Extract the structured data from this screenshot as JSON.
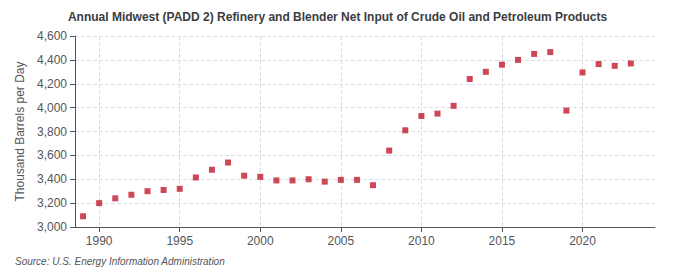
{
  "chart_data": {
    "type": "scatter",
    "title": "Annual Midwest (PADD 2) Refinery and Blender Net Input of Crude Oil and Petroleum Products",
    "ylabel": "Thousand Barrels per Day",
    "annotations": [
      "Source: U.S. Energy Information Administration"
    ],
    "x": [
      1989,
      1990,
      1991,
      1992,
      1993,
      1994,
      1995,
      1996,
      1997,
      1998,
      1999,
      2000,
      2001,
      2002,
      2003,
      2004,
      2005,
      2006,
      2007,
      2008,
      2009,
      2010,
      2011,
      2012,
      2013,
      2014,
      2015,
      2016,
      2017,
      2018,
      2019,
      2020,
      2021,
      2022,
      2023
    ],
    "values": [
      3090,
      3200,
      3240,
      3270,
      3300,
      3310,
      3320,
      3415,
      3480,
      3540,
      3430,
      3420,
      3390,
      3390,
      3400,
      3380,
      3395,
      3395,
      3350,
      3640,
      3810,
      3930,
      3950,
      4015,
      4240,
      4300,
      4360,
      4400,
      4450,
      4465,
      3975,
      4295,
      4365,
      4350,
      4370
    ],
    "color": "#c0192c",
    "marker": "square",
    "xlim": [
      1988.5,
      2024.5
    ],
    "xticks": [
      1990,
      1995,
      2000,
      2005,
      2010,
      2015,
      2020
    ],
    "ylim": [
      3000,
      4600
    ],
    "yticks": [
      {
        "value": 3000,
        "label": "3,000"
      },
      {
        "value": 3200,
        "label": "3,200"
      },
      {
        "value": 3400,
        "label": "3,400"
      },
      {
        "value": 3600,
        "label": "3,600"
      },
      {
        "value": 3800,
        "label": "3,800"
      },
      {
        "value": 4000,
        "label": "4,000"
      },
      {
        "value": 4200,
        "label": "4,200"
      },
      {
        "value": 4400,
        "label": "4,400"
      },
      {
        "value": 4600,
        "label": "4,600"
      }
    ],
    "grid": true
  }
}
